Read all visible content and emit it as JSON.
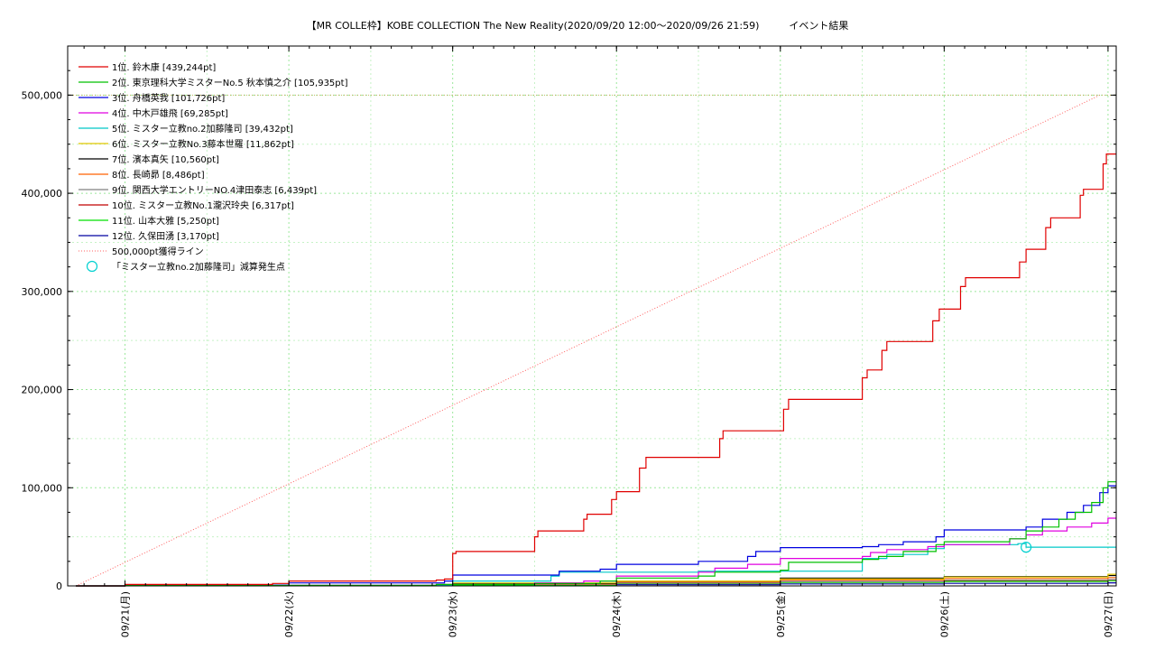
{
  "chart_data": {
    "type": "line",
    "title": "【MR COLLE枠】KOBE COLLECTION The New Reality(2020/09/20 12:00〜2020/09/26 21:59)　　　イベント結果",
    "xlabel": "",
    "ylabel": "",
    "x_ticks": [
      "09/21(月)",
      "09/22(火)",
      "09/23(水)",
      "09/24(木)",
      "09/25(金)",
      "09/26(土)",
      "09/27(日)"
    ],
    "x_range_days": [
      -0.35,
      6.05
    ],
    "ylim": [
      0,
      550000
    ],
    "y_ticks": [
      0,
      100000,
      200000,
      300000,
      400000,
      500000
    ],
    "y_tick_labels": [
      "0",
      "100,000",
      "200,000",
      "300,000",
      "400,000",
      "500,000"
    ],
    "grid": true,
    "legend_position": "top-left",
    "series": [
      {
        "name": "1位. 鈴木康 [439,244pt]",
        "color": "#e00000",
        "points": [
          [
            -0.3,
            0
          ],
          [
            0.0,
            1500
          ],
          [
            0.9,
            2500
          ],
          [
            1.0,
            5000
          ],
          [
            1.9,
            6000
          ],
          [
            1.95,
            7000
          ],
          [
            2.0,
            33000
          ],
          [
            2.02,
            35000
          ],
          [
            2.45,
            35000
          ],
          [
            2.5,
            50000
          ],
          [
            2.52,
            56000
          ],
          [
            2.75,
            56000
          ],
          [
            2.8,
            68000
          ],
          [
            2.82,
            73000
          ],
          [
            2.93,
            73000
          ],
          [
            2.97,
            88000
          ],
          [
            3.0,
            96000
          ],
          [
            3.1,
            96000
          ],
          [
            3.14,
            120000
          ],
          [
            3.18,
            131000
          ],
          [
            3.6,
            131000
          ],
          [
            3.63,
            150000
          ],
          [
            3.65,
            158000
          ],
          [
            4.0,
            158000
          ],
          [
            4.02,
            180000
          ],
          [
            4.05,
            190000
          ],
          [
            4.48,
            190000
          ],
          [
            4.5,
            212000
          ],
          [
            4.53,
            220000
          ],
          [
            4.6,
            220000
          ],
          [
            4.62,
            240000
          ],
          [
            4.65,
            249000
          ],
          [
            4.9,
            249000
          ],
          [
            4.93,
            270000
          ],
          [
            4.97,
            282000
          ],
          [
            5.08,
            282000
          ],
          [
            5.1,
            305000
          ],
          [
            5.13,
            314000
          ],
          [
            5.45,
            314000
          ],
          [
            5.46,
            330000
          ],
          [
            5.5,
            343000
          ],
          [
            5.6,
            343000
          ],
          [
            5.62,
            365000
          ],
          [
            5.65,
            375000
          ],
          [
            5.8,
            375000
          ],
          [
            5.83,
            398000
          ],
          [
            5.85,
            404000
          ],
          [
            5.95,
            404000
          ],
          [
            5.97,
            430000
          ],
          [
            5.99,
            440000
          ],
          [
            6.05,
            440000
          ]
        ]
      },
      {
        "name": "2位. 東京理科大学ミスターNo.5 秋本慎之介 [105,935pt]",
        "color": "#00c000",
        "points": [
          [
            -0.3,
            0
          ],
          [
            0.0,
            500
          ],
          [
            1.9,
            1500
          ],
          [
            2.5,
            2500
          ],
          [
            2.9,
            5000
          ],
          [
            3.0,
            8000
          ],
          [
            3.5,
            10000
          ],
          [
            3.6,
            14000
          ],
          [
            4.0,
            16000
          ],
          [
            4.05,
            24000
          ],
          [
            4.5,
            27000
          ],
          [
            4.6,
            30000
          ],
          [
            4.75,
            35000
          ],
          [
            4.95,
            42000
          ],
          [
            5.0,
            45000
          ],
          [
            5.4,
            48000
          ],
          [
            5.5,
            56000
          ],
          [
            5.6,
            60000
          ],
          [
            5.7,
            68000
          ],
          [
            5.8,
            75000
          ],
          [
            5.9,
            85000
          ],
          [
            5.97,
            100000
          ],
          [
            6.0,
            106000
          ],
          [
            6.05,
            106000
          ]
        ]
      },
      {
        "name": "3位. 舟橋英我 [101,726pt]",
        "color": "#0000e0",
        "points": [
          [
            -0.3,
            0
          ],
          [
            0.0,
            800
          ],
          [
            1.0,
            3000
          ],
          [
            1.95,
            5000
          ],
          [
            2.0,
            11000
          ],
          [
            2.6,
            11000
          ],
          [
            2.65,
            15000
          ],
          [
            2.9,
            17000
          ],
          [
            3.0,
            22000
          ],
          [
            3.5,
            25000
          ],
          [
            3.8,
            30000
          ],
          [
            3.85,
            35000
          ],
          [
            4.0,
            39000
          ],
          [
            4.5,
            40000
          ],
          [
            4.6,
            42000
          ],
          [
            4.75,
            45000
          ],
          [
            4.95,
            50000
          ],
          [
            5.0,
            57000
          ],
          [
            5.5,
            60000
          ],
          [
            5.6,
            68000
          ],
          [
            5.75,
            75000
          ],
          [
            5.85,
            82000
          ],
          [
            5.95,
            95000
          ],
          [
            6.0,
            102000
          ],
          [
            6.05,
            102000
          ]
        ]
      },
      {
        "name": "4位. 中木戸雄飛 [69,285pt]",
        "color": "#e000e0",
        "points": [
          [
            -0.3,
            0
          ],
          [
            0.0,
            500
          ],
          [
            1.9,
            1500
          ],
          [
            2.5,
            3000
          ],
          [
            2.8,
            5000
          ],
          [
            3.0,
            10000
          ],
          [
            3.5,
            14000
          ],
          [
            3.6,
            18000
          ],
          [
            3.8,
            22000
          ],
          [
            4.0,
            28000
          ],
          [
            4.5,
            30000
          ],
          [
            4.55,
            34000
          ],
          [
            4.65,
            37000
          ],
          [
            4.9,
            40000
          ],
          [
            5.0,
            42000
          ],
          [
            5.4,
            48000
          ],
          [
            5.5,
            52000
          ],
          [
            5.6,
            56000
          ],
          [
            5.75,
            60000
          ],
          [
            5.9,
            64000
          ],
          [
            6.0,
            69000
          ],
          [
            6.05,
            69000
          ]
        ]
      },
      {
        "name": "5位. ミスター立教no.2加藤隆司 [39,432pt]",
        "color": "#00c8c8",
        "points": [
          [
            -0.3,
            0
          ],
          [
            0.0,
            500
          ],
          [
            2.0,
            5000
          ],
          [
            2.6,
            10000
          ],
          [
            2.65,
            14000
          ],
          [
            3.0,
            14000
          ],
          [
            3.5,
            15000
          ],
          [
            4.5,
            15000
          ],
          [
            4.5,
            28000
          ],
          [
            4.65,
            32000
          ],
          [
            4.9,
            38000
          ],
          [
            5.0,
            42000
          ],
          [
            5.45,
            43000
          ],
          [
            5.5,
            39432
          ],
          [
            6.05,
            39432
          ]
        ]
      },
      {
        "name": "6位. ミスター立教No.3藤本世羅 [11,862pt]",
        "color": "#e0c800",
        "points": [
          [
            -0.3,
            0
          ],
          [
            0.0,
            500
          ],
          [
            2.0,
            3000
          ],
          [
            3.0,
            5000
          ],
          [
            4.0,
            7000
          ],
          [
            5.0,
            9000
          ],
          [
            6.0,
            11862
          ],
          [
            6.05,
            11862
          ]
        ]
      },
      {
        "name": "7位. 濱本真矢 [10,560pt]",
        "color": "#000000",
        "points": [
          [
            -0.3,
            0
          ],
          [
            0.0,
            500
          ],
          [
            2.0,
            2500
          ],
          [
            3.0,
            5000
          ],
          [
            4.0,
            8000
          ],
          [
            5.0,
            9500
          ],
          [
            6.0,
            10560
          ],
          [
            6.05,
            10560
          ]
        ]
      },
      {
        "name": "8位. 長崎昴 [8,486pt]",
        "color": "#ff6000",
        "points": [
          [
            -0.3,
            0
          ],
          [
            0.0,
            400
          ],
          [
            2.0,
            2000
          ],
          [
            3.0,
            4000
          ],
          [
            4.0,
            6000
          ],
          [
            5.0,
            7500
          ],
          [
            6.0,
            8486
          ],
          [
            6.05,
            8486
          ]
        ]
      },
      {
        "name": "9位. 関西大学エントリーNO.4津田泰志 [6,439pt]",
        "color": "#808080",
        "points": [
          [
            -0.3,
            0
          ],
          [
            0.0,
            300
          ],
          [
            2.0,
            1500
          ],
          [
            3.0,
            3000
          ],
          [
            4.0,
            4500
          ],
          [
            5.0,
            5800
          ],
          [
            6.0,
            6439
          ],
          [
            6.05,
            6439
          ]
        ]
      },
      {
        "name": "10位. ミスター立教No.1瀧沢玲央 [6,317pt]",
        "color": "#c00000",
        "points": [
          [
            -0.3,
            0
          ],
          [
            0.0,
            300
          ],
          [
            2.0,
            1500
          ],
          [
            3.0,
            3000
          ],
          [
            4.0,
            4500
          ],
          [
            5.0,
            5500
          ],
          [
            6.0,
            6317
          ],
          [
            6.05,
            6317
          ]
        ]
      },
      {
        "name": "11位. 山本大雅 [5,250pt]",
        "color": "#00e000",
        "points": [
          [
            -0.3,
            0
          ],
          [
            0.0,
            200
          ],
          [
            2.0,
            1000
          ],
          [
            3.0,
            2500
          ],
          [
            4.0,
            3500
          ],
          [
            5.0,
            4500
          ],
          [
            6.0,
            5250
          ],
          [
            6.05,
            5250
          ]
        ]
      },
      {
        "name": "12位. 久保田湧 [3,170pt]",
        "color": "#0000a0",
        "points": [
          [
            -0.3,
            0
          ],
          [
            0.0,
            100
          ],
          [
            2.0,
            500
          ],
          [
            3.0,
            1200
          ],
          [
            4.0,
            2000
          ],
          [
            5.0,
            2600
          ],
          [
            6.0,
            3170
          ],
          [
            6.05,
            3170
          ]
        ]
      }
    ],
    "target_line": {
      "name": "500,000pt獲得ライン",
      "color": "#ff6060",
      "points": [
        [
          -0.3,
          0
        ],
        [
          5.95,
          500000
        ]
      ],
      "horizontal_value": 500000
    },
    "marker": {
      "name": "「ミスター立教no.2加藤隆司」減算発生点",
      "color": "#00d0d0",
      "point": [
        5.5,
        39432
      ]
    }
  }
}
